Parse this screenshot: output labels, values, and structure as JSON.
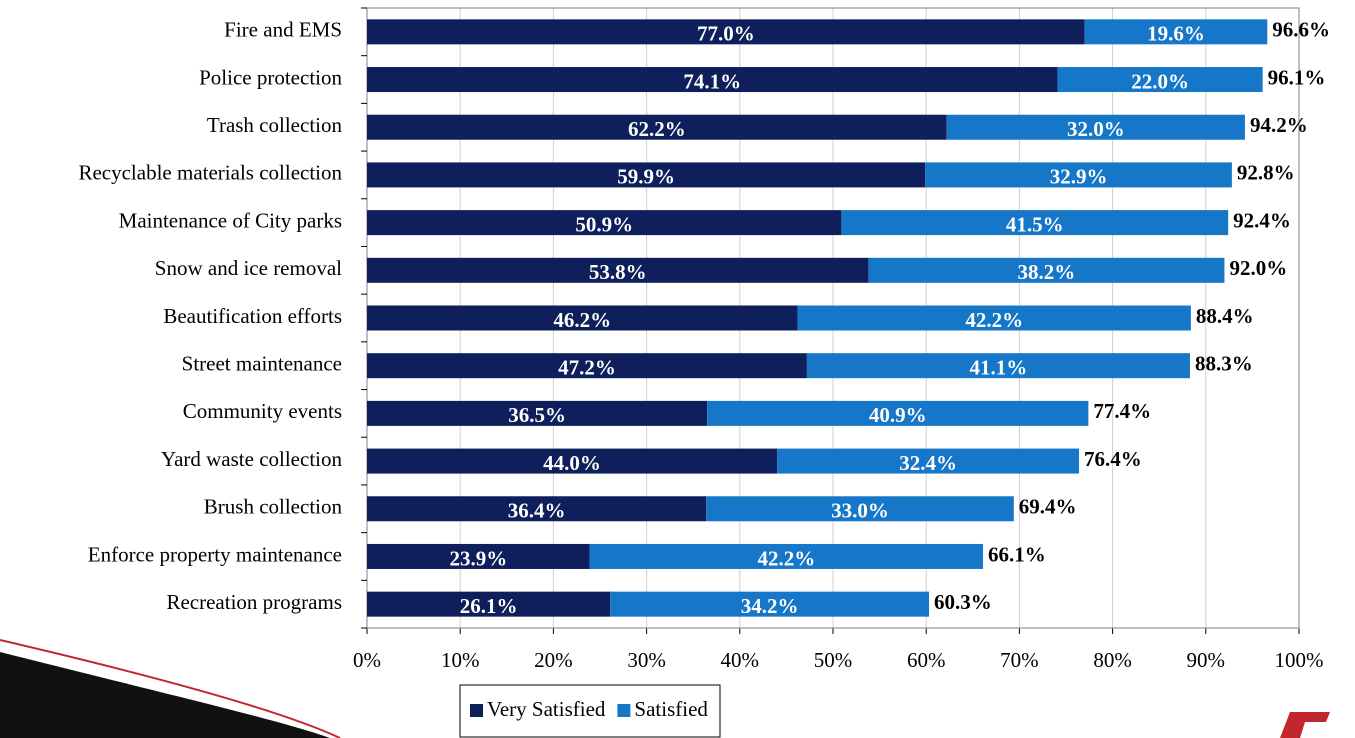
{
  "chart_data": {
    "type": "stacked_bar_horizontal",
    "categories": [
      "Fire and EMS",
      "Police protection",
      "Trash collection",
      "Recyclable materials collection",
      "Maintenance of City parks",
      "Snow and ice removal",
      "Beautification efforts",
      "Street maintenance",
      "Community events",
      "Yard waste collection",
      "Brush collection",
      "Enforce property maintenance",
      "Recreation programs"
    ],
    "series": [
      {
        "name": "Very Satisfied",
        "color": "#0e1f5b",
        "values": [
          77.0,
          74.1,
          62.2,
          59.9,
          50.9,
          53.8,
          46.2,
          47.2,
          36.5,
          44.0,
          36.4,
          23.9,
          26.1
        ],
        "value_labels": [
          "77.0%",
          "74.1%",
          "62.2%",
          "59.9%",
          "50.9%",
          "53.8%",
          "46.2%",
          "47.2%",
          "36.5%",
          "44.0%",
          "36.4%",
          "23.9%",
          "26.1%"
        ]
      },
      {
        "name": "Satisfied",
        "color": "#1677c8",
        "values": [
          19.6,
          22.0,
          32.0,
          32.9,
          41.5,
          38.2,
          42.2,
          41.1,
          40.9,
          32.4,
          33.0,
          42.2,
          34.2
        ],
        "value_labels": [
          "19.6%",
          "22.0%",
          "32.0%",
          "32.9%",
          "41.5%",
          "38.2%",
          "42.2%",
          "41.1%",
          "40.9%",
          "32.4%",
          "33.0%",
          "42.2%",
          "34.2%"
        ]
      }
    ],
    "totals": [
      96.6,
      96.1,
      94.2,
      92.8,
      92.4,
      92.0,
      88.4,
      88.3,
      77.4,
      76.4,
      69.4,
      66.1,
      60.3
    ],
    "total_labels": [
      "96.6%",
      "96.1%",
      "94.2%",
      "92.8%",
      "92.4%",
      "92.0%",
      "88.4%",
      "88.3%",
      "77.4%",
      "76.4%",
      "69.4%",
      "66.1%",
      "60.3%"
    ],
    "xlim": [
      0,
      100
    ],
    "xticks": [
      {
        "value": 0,
        "label": "0%"
      },
      {
        "value": 10,
        "label": "10%"
      },
      {
        "value": 20,
        "label": "20%"
      },
      {
        "value": 30,
        "label": "30%"
      },
      {
        "value": 40,
        "label": "40%"
      },
      {
        "value": 50,
        "label": "50%"
      },
      {
        "value": 60,
        "label": "60%"
      },
      {
        "value": 70,
        "label": "70%"
      },
      {
        "value": 80,
        "label": "80%"
      },
      {
        "value": 90,
        "label": "90%"
      },
      {
        "value": 100,
        "label": "100%"
      }
    ],
    "grid": true,
    "legend": "bottom"
  }
}
